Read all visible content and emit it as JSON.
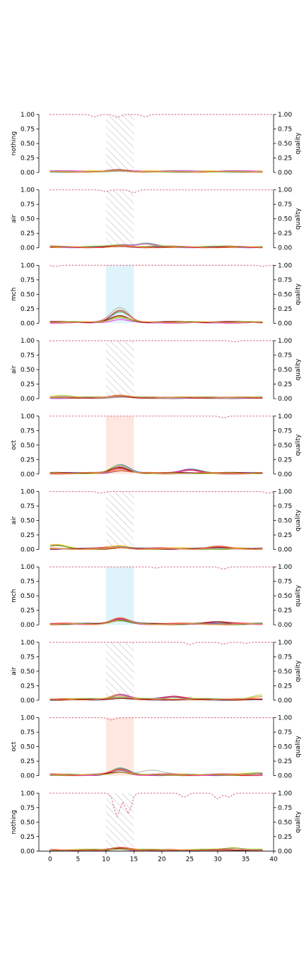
{
  "chart_data": {
    "type": "line",
    "x_ticks": [
      0,
      5,
      10,
      15,
      20,
      25,
      30,
      35,
      40
    ],
    "xlim": [
      -2,
      40
    ],
    "ylim": [
      0,
      1
    ],
    "y_ticks": [
      "0.00",
      "0.25",
      "0.50",
      "0.75",
      "1.00"
    ],
    "right_ylabel": "quality",
    "stimulus_window": [
      10,
      15
    ],
    "grid": false,
    "legend": "none",
    "colors": {
      "mch": "#dff3fb",
      "oct": "#fde7e0",
      "hatch": "#b0b0b0",
      "quality": "#d77a8e",
      "palette": [
        "#e6194b",
        "#f58231",
        "#ffe119",
        "#bfef45",
        "#3cb44b",
        "#4363d8",
        "#911eb4",
        "#f032e6",
        "#aaaaaa",
        "#a9a9a9",
        "#d62728",
        "#800000",
        "#9acd32",
        "#ff7f50"
      ]
    },
    "panels": [
      {
        "ylabel": "nothing",
        "stimulus": "nothing",
        "peak": 0.03,
        "quality_dips": [
          [
            8,
            0.96
          ],
          [
            12,
            0.95
          ],
          [
            17,
            0.96
          ]
        ],
        "bumps": []
      },
      {
        "ylabel": "air",
        "stimulus": "air",
        "peak": 0.03,
        "quality_dips": [
          [
            10,
            0.97
          ],
          [
            15,
            0.95
          ]
        ],
        "bumps": [
          [
            17,
            0.1
          ]
        ]
      },
      {
        "ylabel": "mch",
        "stimulus": "mch",
        "peak": 0.25,
        "quality_dips": [
          [
            1,
            0.98
          ],
          [
            38,
            0.98
          ]
        ],
        "bumps": []
      },
      {
        "ylabel": "air",
        "stimulus": "air",
        "peak": 0.04,
        "quality_dips": [
          [
            33,
            0.98
          ]
        ],
        "bumps": [
          [
            2,
            0.05
          ]
        ]
      },
      {
        "ylabel": "oct",
        "stimulus": "oct",
        "peak": 0.14,
        "quality_dips": [
          [
            31,
            0.97
          ]
        ],
        "bumps": [
          [
            25,
            0.1
          ]
        ]
      },
      {
        "ylabel": "air",
        "stimulus": "air",
        "peak": 0.05,
        "quality_dips": [
          [
            9,
            0.97
          ],
          [
            39,
            0.97
          ]
        ],
        "bumps": [
          [
            1,
            0.1
          ],
          [
            30,
            0.06
          ]
        ]
      },
      {
        "ylabel": "mch",
        "stimulus": "mch",
        "peak": 0.12,
        "quality_dips": [
          [
            19,
            0.98
          ],
          [
            31,
            0.96
          ]
        ],
        "bumps": [
          [
            30,
            0.06
          ]
        ]
      },
      {
        "ylabel": "air",
        "stimulus": "air",
        "peak": 0.1,
        "quality_dips": [
          [
            25,
            0.96
          ],
          [
            31,
            0.97
          ],
          [
            35,
            0.98
          ]
        ],
        "bumps": [
          [
            22,
            0.08
          ],
          [
            38,
            0.1
          ]
        ]
      },
      {
        "ylabel": "oct",
        "stimulus": "oct",
        "peak": 0.12,
        "quality_dips": [
          [
            11,
            0.96
          ]
        ],
        "bumps": [
          [
            18,
            0.12
          ],
          [
            37,
            0.05
          ]
        ]
      },
      {
        "ylabel": "nothing",
        "stimulus": "nothing",
        "peak": 0.05,
        "quality_dips": [
          [
            12,
            0.6
          ],
          [
            14,
            0.65
          ],
          [
            24,
            0.93
          ],
          [
            30,
            0.9
          ],
          [
            32,
            0.93
          ]
        ],
        "bumps": [
          [
            33,
            0.06
          ]
        ]
      }
    ]
  }
}
